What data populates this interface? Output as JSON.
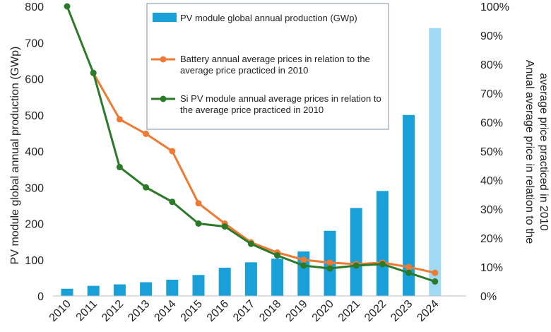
{
  "chart_data": {
    "type": "bar+line",
    "categories": [
      "2010",
      "2011",
      "2012",
      "2013",
      "2014",
      "2015",
      "2016",
      "2017",
      "2018",
      "2019",
      "2020",
      "2021",
      "2022",
      "2023",
      "2024"
    ],
    "y_left": {
      "label": "PV module global annual production (GWp)",
      "ylim": [
        0,
        800
      ],
      "ticks": [
        "0",
        "100",
        "200",
        "300",
        "400",
        "500",
        "600",
        "700",
        "800"
      ]
    },
    "y_right": {
      "label_line1": "Anual average price in relation to the",
      "label_line2": "average price practiced in 2010",
      "ylim": [
        0,
        100
      ],
      "ticks": [
        "0%",
        "10%",
        "20%",
        "30%",
        "40%",
        "50%",
        "60%",
        "70%",
        "80%",
        "90%",
        "100%"
      ]
    },
    "grid": false,
    "legend_placement": "top-center",
    "series": [
      {
        "name": "PV module global annual production (GWp)",
        "kind": "bar",
        "axis": "left",
        "color": "#1aa0d8",
        "highlight_color": "#9fd9f2",
        "values": [
          20,
          28,
          32,
          38,
          45,
          58,
          78,
          93,
          103,
          123,
          180,
          243,
          290,
          500,
          740
        ]
      },
      {
        "name_line1": "Battery annual average prices in relation to the",
        "name_line2": "average price practiced in 2010",
        "kind": "line",
        "axis": "right",
        "color": "#ee7a33",
        "start_index": 1,
        "values": [
          null,
          77,
          61,
          56,
          50,
          32,
          25,
          18.5,
          15,
          12.5,
          11.5,
          11,
          11.5,
          10,
          8
        ]
      },
      {
        "name_line1": "Si PV module annual average prices in relation to",
        "name_line2": "the average price practiced in 2010",
        "kind": "line",
        "axis": "right",
        "color": "#2a7a2a",
        "values": [
          100,
          77,
          44.5,
          37.5,
          32.5,
          25,
          24,
          18,
          14,
          10.5,
          9.5,
          10.5,
          11,
          8,
          5
        ]
      }
    ]
  }
}
